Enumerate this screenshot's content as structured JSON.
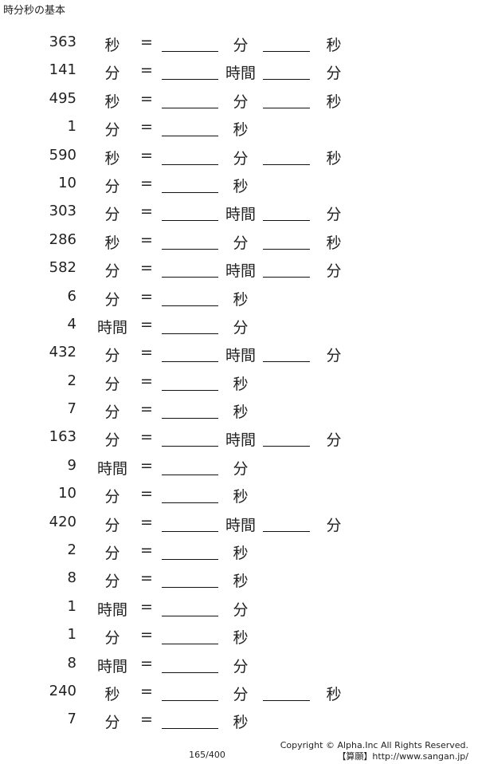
{
  "title": "時分秒の基本",
  "rows": [
    {
      "num": "363",
      "u1": "秒",
      "eq": "=",
      "u2": "分",
      "b2": true,
      "u3": "秒"
    },
    {
      "num": "141",
      "u1": "分",
      "eq": "=",
      "u2": "時間",
      "b2": true,
      "u3": "分"
    },
    {
      "num": "495",
      "u1": "秒",
      "eq": "=",
      "u2": "分",
      "b2": true,
      "u3": "秒"
    },
    {
      "num": "1",
      "u1": "分",
      "eq": "=",
      "u2": "秒",
      "b2": false,
      "u3": ""
    },
    {
      "num": "590",
      "u1": "秒",
      "eq": "=",
      "u2": "分",
      "b2": true,
      "u3": "秒"
    },
    {
      "num": "10",
      "u1": "分",
      "eq": "=",
      "u2": "秒",
      "b2": false,
      "u3": ""
    },
    {
      "num": "303",
      "u1": "分",
      "eq": "=",
      "u2": "時間",
      "b2": true,
      "u3": "分"
    },
    {
      "num": "286",
      "u1": "秒",
      "eq": "=",
      "u2": "分",
      "b2": true,
      "u3": "秒"
    },
    {
      "num": "582",
      "u1": "分",
      "eq": "=",
      "u2": "時間",
      "b2": true,
      "u3": "分"
    },
    {
      "num": "6",
      "u1": "分",
      "eq": "=",
      "u2": "秒",
      "b2": false,
      "u3": ""
    },
    {
      "num": "4",
      "u1": "時間",
      "eq": "=",
      "u2": "分",
      "b2": false,
      "u3": ""
    },
    {
      "num": "432",
      "u1": "分",
      "eq": "=",
      "u2": "時間",
      "b2": true,
      "u3": "分"
    },
    {
      "num": "2",
      "u1": "分",
      "eq": "=",
      "u2": "秒",
      "b2": false,
      "u3": ""
    },
    {
      "num": "7",
      "u1": "分",
      "eq": "=",
      "u2": "秒",
      "b2": false,
      "u3": ""
    },
    {
      "num": "163",
      "u1": "分",
      "eq": "=",
      "u2": "時間",
      "b2": true,
      "u3": "分"
    },
    {
      "num": "9",
      "u1": "時間",
      "eq": "=",
      "u2": "分",
      "b2": false,
      "u3": ""
    },
    {
      "num": "10",
      "u1": "分",
      "eq": "=",
      "u2": "秒",
      "b2": false,
      "u3": ""
    },
    {
      "num": "420",
      "u1": "分",
      "eq": "=",
      "u2": "時間",
      "b2": true,
      "u3": "分"
    },
    {
      "num": "2",
      "u1": "分",
      "eq": "=",
      "u2": "秒",
      "b2": false,
      "u3": ""
    },
    {
      "num": "8",
      "u1": "分",
      "eq": "=",
      "u2": "秒",
      "b2": false,
      "u3": ""
    },
    {
      "num": "1",
      "u1": "時間",
      "eq": "=",
      "u2": "分",
      "b2": false,
      "u3": ""
    },
    {
      "num": "1",
      "u1": "分",
      "eq": "=",
      "u2": "秒",
      "b2": false,
      "u3": ""
    },
    {
      "num": "8",
      "u1": "時間",
      "eq": "=",
      "u2": "分",
      "b2": false,
      "u3": ""
    },
    {
      "num": "240",
      "u1": "秒",
      "eq": "=",
      "u2": "分",
      "b2": true,
      "u3": "秒"
    },
    {
      "num": "7",
      "u1": "分",
      "eq": "=",
      "u2": "秒",
      "b2": false,
      "u3": ""
    }
  ],
  "footer": {
    "page": "165/400",
    "copyright": "Copyright © Alpha.Inc All Rights Reserved.",
    "site": "【算願】http://www.sangan.jp/"
  }
}
